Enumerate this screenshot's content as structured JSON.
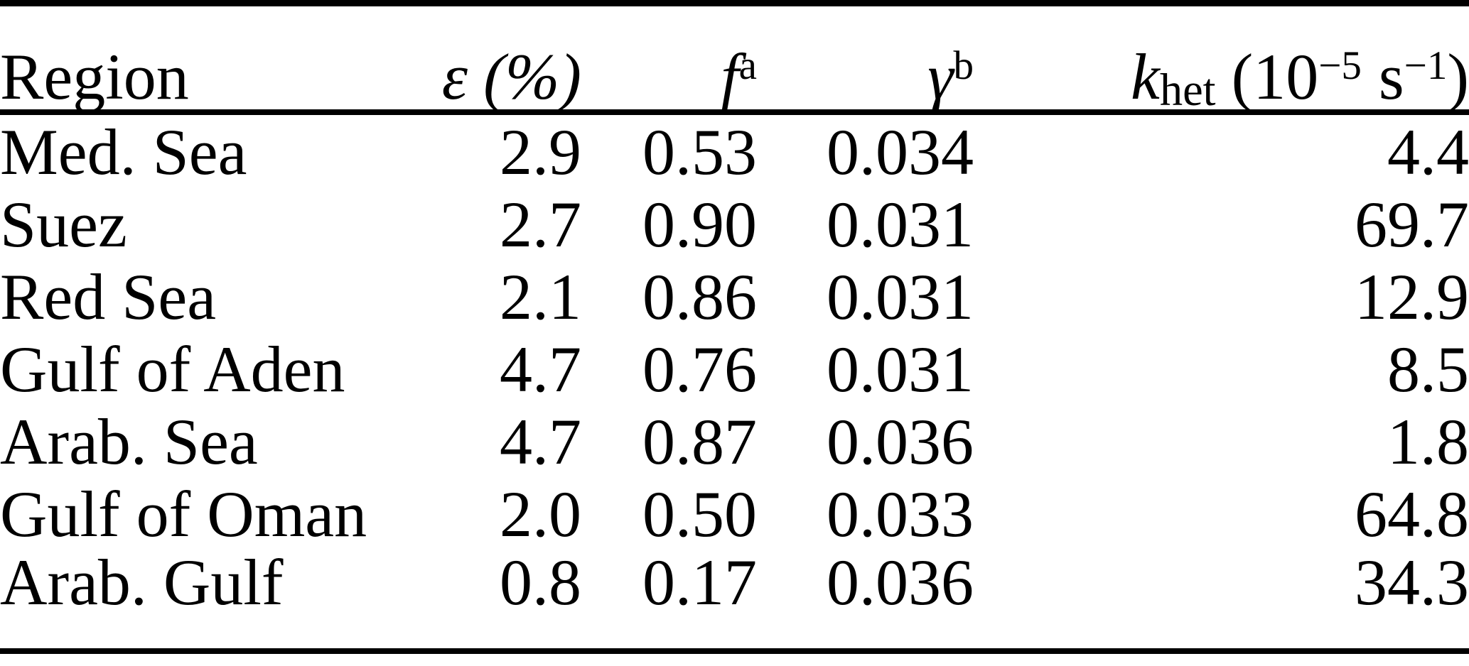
{
  "page": {
    "background_color": "#ffffff",
    "text_color": "#000000",
    "rule_color": "#000000"
  },
  "table": {
    "header": {
      "region": "Region",
      "epsilon_symbol": "ε",
      "epsilon_unit": "(%)",
      "f_symbol": "f",
      "f_sup": "a",
      "gamma_symbol": "γ",
      "gamma_sup": "b",
      "k_symbol": "k",
      "k_sub": "het",
      "k_unit_open": "(10",
      "k_unit_exp1": "−5",
      "k_unit_mid": "s",
      "k_unit_exp2": "−1",
      "k_unit_close": ")"
    },
    "rows": [
      [
        "Med. Sea",
        "2.9",
        "0.53",
        "0.034",
        "4.4"
      ],
      [
        "Suez",
        "2.7",
        "0.90",
        "0.031",
        "69.7"
      ],
      [
        "Red Sea",
        "2.1",
        "0.86",
        "0.031",
        "12.9"
      ],
      [
        "Gulf of Aden",
        "4.7",
        "0.76",
        "0.031",
        "8.5"
      ],
      [
        "Arab. Sea",
        "4.7",
        "0.87",
        "0.036",
        "1.8"
      ],
      [
        "Gulf of Oman",
        "2.0",
        "0.50",
        "0.033",
        "64.8"
      ],
      [
        "Arab. Gulf",
        "0.8",
        "0.17",
        "0.036",
        "34.3"
      ]
    ]
  }
}
